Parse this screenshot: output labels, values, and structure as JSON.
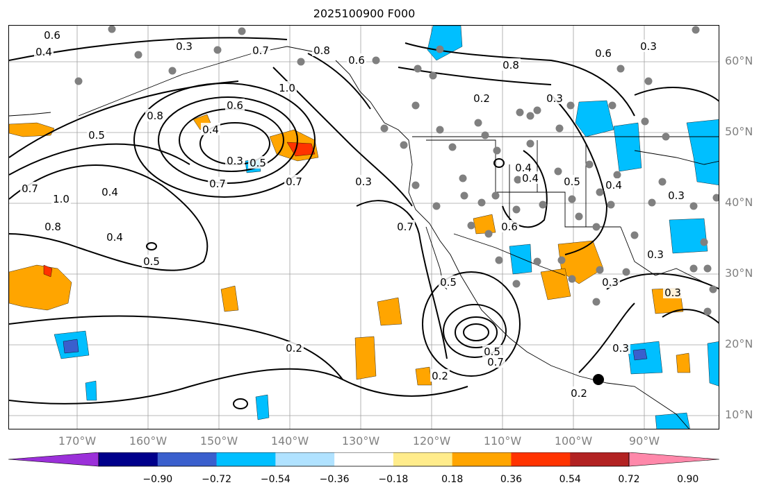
{
  "title": "2025100900 F000",
  "lat_labels": [
    "60°N",
    "50°N",
    "40°N",
    "30°N",
    "20°N",
    "10°N"
  ],
  "lon_labels": [
    "170°W",
    "160°W",
    "150°W",
    "140°W",
    "130°W",
    "120°W",
    "110°W",
    "100°W",
    "90°W"
  ],
  "colorbar": {
    "colors": [
      "#9b30d9",
      "#00008b",
      "#3a5fcd",
      "#00bfff",
      "#b0e2ff",
      "#ffffff",
      "#ffec8b",
      "#ffa500",
      "#ff3300",
      "#b22222",
      "#ff88aa"
    ],
    "ticks": [
      "−0.90",
      "−0.72",
      "−0.54",
      "−0.36",
      "−0.18",
      "0.18",
      "0.36",
      "0.54",
      "0.72",
      "0.90"
    ]
  },
  "contour_labels": [
    "0.6",
    "0.4",
    "0.3",
    "0.7",
    "0.8",
    "0.6",
    "0.5",
    "1.0",
    "0.8",
    "0.6",
    "0.4",
    "0.3",
    "0.5",
    "0.7",
    "0.7",
    "0.3",
    "0.7",
    "0.4",
    "1.0",
    "0.8",
    "0.4",
    "0.5",
    "0.2",
    "0.2",
    "0.8",
    "0.3",
    "0.6",
    "0.3",
    "0.4",
    "0.5",
    "0.7",
    "0.6",
    "0.5",
    "0.4",
    "0.3",
    "0.3",
    "0.3",
    "0.2",
    "0.2",
    "0.7",
    "0.5",
    "0.3",
    "0.3",
    "0.4"
  ]
}
